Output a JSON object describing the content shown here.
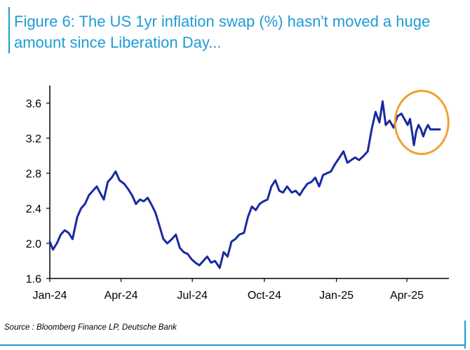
{
  "title": "Figure 6: The US 1yr inflation swap (%) hasn't moved a huge amount since Liberation Day...",
  "source": "Source : Bloomberg Finance LP, Deutsche Bank",
  "colors": {
    "title": "#1f9bd5",
    "line": "#1a2aa0",
    "highlight": "#f0a030",
    "rule": "#1f9bd5"
  },
  "chart_data": {
    "type": "line",
    "title": "Figure 6: The US 1yr inflation swap (%) hasn't moved a huge amount since Liberation Day...",
    "xlabel": "",
    "ylabel": "",
    "ylim": [
      1.6,
      3.8
    ],
    "yticks": [
      1.6,
      2.0,
      2.4,
      2.8,
      3.2,
      3.6
    ],
    "ytick_labels": [
      "1.6",
      "2.0",
      "2.4",
      "2.8",
      "3.2",
      "3.6"
    ],
    "xlim": [
      "2024-01-01",
      "2025-05-20"
    ],
    "xticks": [
      "2024-01-01",
      "2024-04-01",
      "2024-07-01",
      "2024-10-01",
      "2025-01-01",
      "2025-04-01"
    ],
    "xtick_labels": [
      "Jan-24",
      "Apr-24",
      "Jul-24",
      "Oct-24",
      "Jan-25",
      "Apr-25"
    ],
    "grid": false,
    "legend": "none",
    "annotation": {
      "type": "circle",
      "center": [
        "2025-04-20",
        3.38
      ],
      "note": "highlight around post-Liberation Day period"
    },
    "series": [
      {
        "x": [
          "2024-01-01",
          "2024-01-05",
          "2024-01-10",
          "2024-01-15",
          "2024-01-20",
          "2024-01-25",
          "2024-01-30",
          "2024-02-05",
          "2024-02-10",
          "2024-02-15",
          "2024-02-20",
          "2024-02-25",
          "2024-03-01",
          "2024-03-05",
          "2024-03-10",
          "2024-03-15",
          "2024-03-20",
          "2024-03-25",
          "2024-03-30",
          "2024-04-05",
          "2024-04-10",
          "2024-04-15",
          "2024-04-20",
          "2024-04-25",
          "2024-04-30",
          "2024-05-05",
          "2024-05-10",
          "2024-05-15",
          "2024-05-20",
          "2024-05-25",
          "2024-05-30",
          "2024-06-05",
          "2024-06-10",
          "2024-06-15",
          "2024-06-20",
          "2024-06-25",
          "2024-06-30",
          "2024-07-05",
          "2024-07-10",
          "2024-07-15",
          "2024-07-20",
          "2024-07-25",
          "2024-07-30",
          "2024-08-05",
          "2024-08-10",
          "2024-08-15",
          "2024-08-20",
          "2024-08-25",
          "2024-08-30",
          "2024-09-05",
          "2024-09-10",
          "2024-09-15",
          "2024-09-20",
          "2024-09-25",
          "2024-09-30",
          "2024-10-05",
          "2024-10-10",
          "2024-10-15",
          "2024-10-20",
          "2024-10-25",
          "2024-10-30",
          "2024-11-05",
          "2024-11-10",
          "2024-11-15",
          "2024-11-20",
          "2024-11-25",
          "2024-11-30",
          "2024-12-05",
          "2024-12-10",
          "2024-12-15",
          "2024-12-20",
          "2024-12-25",
          "2024-12-30",
          "2025-01-05",
          "2025-01-10",
          "2025-01-15",
          "2025-01-20",
          "2025-01-25",
          "2025-01-30",
          "2025-02-05",
          "2025-02-10",
          "2025-02-15",
          "2025-02-20",
          "2025-02-25",
          "2025-03-01",
          "2025-03-05",
          "2025-03-10",
          "2025-03-15",
          "2025-03-20",
          "2025-03-25",
          "2025-03-30",
          "2025-04-02",
          "2025-04-05",
          "2025-04-08",
          "2025-04-10",
          "2025-04-13",
          "2025-04-16",
          "2025-04-19",
          "2025-04-22",
          "2025-04-25",
          "2025-04-28",
          "2025-05-01",
          "2025-05-04",
          "2025-05-07",
          "2025-05-10",
          "2025-05-13"
        ],
        "y": [
          2.02,
          1.93,
          2.0,
          2.1,
          2.15,
          2.12,
          2.05,
          2.3,
          2.4,
          2.45,
          2.55,
          2.6,
          2.65,
          2.58,
          2.5,
          2.7,
          2.75,
          2.82,
          2.72,
          2.68,
          2.62,
          2.55,
          2.45,
          2.5,
          2.48,
          2.52,
          2.44,
          2.35,
          2.2,
          2.05,
          2.0,
          2.05,
          2.1,
          1.95,
          1.9,
          1.88,
          1.82,
          1.78,
          1.75,
          1.8,
          1.85,
          1.78,
          1.8,
          1.72,
          1.9,
          1.85,
          2.02,
          2.05,
          2.1,
          2.12,
          2.3,
          2.42,
          2.38,
          2.45,
          2.48,
          2.5,
          2.65,
          2.72,
          2.6,
          2.58,
          2.65,
          2.58,
          2.6,
          2.55,
          2.62,
          2.68,
          2.7,
          2.75,
          2.65,
          2.78,
          2.8,
          2.82,
          2.9,
          2.98,
          3.05,
          2.92,
          2.95,
          2.98,
          2.95,
          3.0,
          3.05,
          3.3,
          3.5,
          3.38,
          3.62,
          3.35,
          3.4,
          3.32,
          3.45,
          3.48,
          3.4,
          3.35,
          3.42,
          3.25,
          3.12,
          3.28,
          3.35,
          3.3,
          3.22,
          3.3,
          3.35,
          3.3,
          3.3,
          3.3,
          3.3,
          3.3
        ]
      }
    ]
  }
}
